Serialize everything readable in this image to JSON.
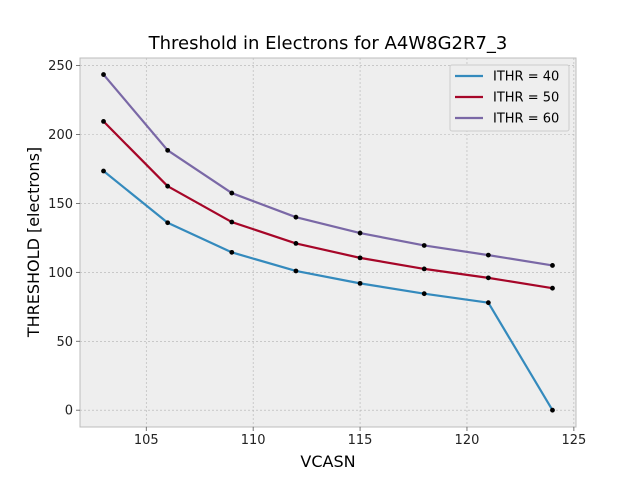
{
  "chart_data": {
    "type": "line",
    "title": "Threshold in Electrons for A4W8G2R7_3",
    "xlabel": "VCASN",
    "ylabel": "THRESHOLD [electrons]",
    "x": [
      103,
      106,
      109,
      112,
      115,
      118,
      121,
      124
    ],
    "xlim": [
      101.9,
      125.1
    ],
    "ylim": [
      -12.2,
      255.5
    ],
    "xticks": [
      105,
      110,
      115,
      120,
      125
    ],
    "yticks": [
      0,
      50,
      100,
      150,
      200,
      250
    ],
    "grid": true,
    "legend_position": "top-right",
    "series": [
      {
        "name": "ITHR = 40",
        "color": "#348ABD",
        "values": [
          173.5,
          136,
          114.5,
          101,
          92,
          84.5,
          78,
          0
        ]
      },
      {
        "name": "ITHR = 50",
        "color": "#A60628",
        "values": [
          209.5,
          162.5,
          136.5,
          121,
          110.5,
          102.5,
          96,
          88.5
        ]
      },
      {
        "name": "ITHR = 60",
        "color": "#7A68A6",
        "values": [
          243.5,
          188.5,
          157.5,
          140,
          128.5,
          119.5,
          112.5,
          105
        ]
      }
    ]
  }
}
